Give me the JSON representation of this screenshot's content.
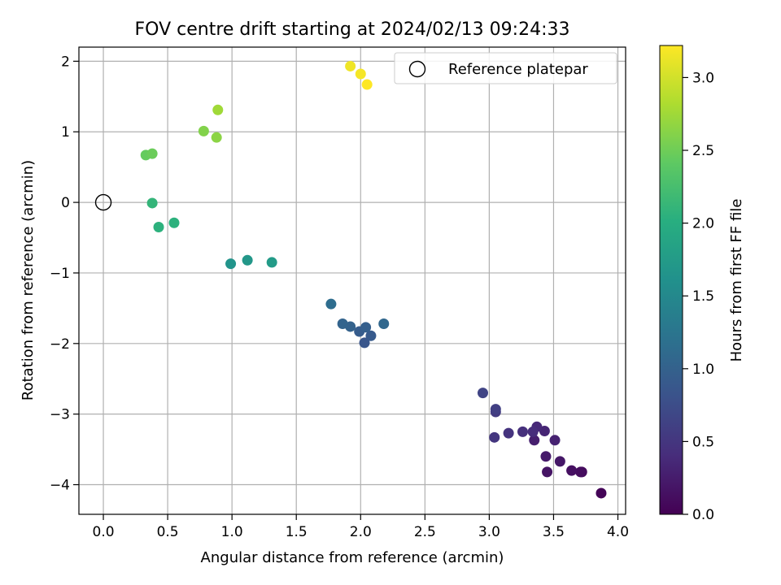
{
  "chart_data": {
    "type": "scatter",
    "title": "FOV centre drift starting at 2024/02/13 09:24:33",
    "xlabel": "Angular distance from reference (arcmin)",
    "ylabel": "Rotation from reference (arcmin)",
    "xlim": [
      -0.19,
      4.06
    ],
    "ylim": [
      -4.42,
      2.2
    ],
    "xticks": [
      0.0,
      0.5,
      1.0,
      1.5,
      2.0,
      2.5,
      3.0,
      3.5,
      4.0
    ],
    "xtick_labels": [
      "0.0",
      "0.5",
      "1.0",
      "1.5",
      "2.0",
      "2.5",
      "3.0",
      "3.5",
      "4.0"
    ],
    "yticks": [
      2,
      1,
      0,
      -1,
      -2,
      -3,
      -4
    ],
    "ytick_labels": [
      "2",
      "1",
      "0",
      "−1",
      "−2",
      "−3",
      "−4"
    ],
    "grid": true,
    "legend": {
      "position": "top-right",
      "entries": [
        "Reference platepar"
      ]
    },
    "reference_point": {
      "x": 0.0,
      "y": 0.0
    },
    "colorbar": {
      "label": "Hours from first FF file",
      "range": [
        0.0,
        3.22
      ],
      "ticks": [
        0.0,
        0.5,
        1.0,
        1.5,
        2.0,
        2.5,
        3.0
      ],
      "tick_labels": [
        "0.0",
        "0.5",
        "1.0",
        "1.5",
        "2.0",
        "2.5",
        "3.0"
      ],
      "colormap": "viridis"
    },
    "points": [
      {
        "x": 3.87,
        "y": -4.12,
        "hours": 0.03
      },
      {
        "x": 3.72,
        "y": -3.82,
        "hours": 0.07
      },
      {
        "x": 3.71,
        "y": -3.82,
        "hours": 0.1
      },
      {
        "x": 3.64,
        "y": -3.8,
        "hours": 0.13
      },
      {
        "x": 3.45,
        "y": -3.82,
        "hours": 0.17
      },
      {
        "x": 3.55,
        "y": -3.67,
        "hours": 0.2
      },
      {
        "x": 3.44,
        "y": -3.6,
        "hours": 0.23
      },
      {
        "x": 3.35,
        "y": -3.37,
        "hours": 0.27
      },
      {
        "x": 3.51,
        "y": -3.37,
        "hours": 0.3
      },
      {
        "x": 3.43,
        "y": -3.24,
        "hours": 0.33
      },
      {
        "x": 3.37,
        "y": -3.18,
        "hours": 0.37
      },
      {
        "x": 3.34,
        "y": -3.25,
        "hours": 0.4
      },
      {
        "x": 3.26,
        "y": -3.25,
        "hours": 0.43
      },
      {
        "x": 3.15,
        "y": -3.27,
        "hours": 0.47
      },
      {
        "x": 3.04,
        "y": -3.33,
        "hours": 0.5
      },
      {
        "x": 3.05,
        "y": -2.97,
        "hours": 0.55
      },
      {
        "x": 3.05,
        "y": -2.93,
        "hours": 0.6
      },
      {
        "x": 2.95,
        "y": -2.7,
        "hours": 0.65
      },
      {
        "x": 2.03,
        "y": -1.99,
        "hours": 0.85
      },
      {
        "x": 2.08,
        "y": -1.89,
        "hours": 0.9
      },
      {
        "x": 1.99,
        "y": -1.83,
        "hours": 0.93
      },
      {
        "x": 2.04,
        "y": -1.77,
        "hours": 0.97
      },
      {
        "x": 1.92,
        "y": -1.76,
        "hours": 1.0
      },
      {
        "x": 1.86,
        "y": -1.72,
        "hours": 1.03
      },
      {
        "x": 2.18,
        "y": -1.72,
        "hours": 1.07
      },
      {
        "x": 1.77,
        "y": -1.44,
        "hours": 1.15
      },
      {
        "x": 0.99,
        "y": -0.87,
        "hours": 1.65
      },
      {
        "x": 1.12,
        "y": -0.82,
        "hours": 1.7
      },
      {
        "x": 1.31,
        "y": -0.85,
        "hours": 1.75
      },
      {
        "x": 0.43,
        "y": -0.35,
        "hours": 2.05
      },
      {
        "x": 0.55,
        "y": -0.29,
        "hours": 2.05
      },
      {
        "x": 0.38,
        "y": -0.01,
        "hours": 2.1
      },
      {
        "x": 0.33,
        "y": 0.67,
        "hours": 2.45
      },
      {
        "x": 0.38,
        "y": 0.69,
        "hours": 2.48
      },
      {
        "x": 0.78,
        "y": 1.01,
        "hours": 2.6
      },
      {
        "x": 0.88,
        "y": 0.92,
        "hours": 2.65
      },
      {
        "x": 0.89,
        "y": 1.31,
        "hours": 2.75
      },
      {
        "x": 1.92,
        "y": 1.93,
        "hours": 3.15
      },
      {
        "x": 2.0,
        "y": 1.82,
        "hours": 3.18
      },
      {
        "x": 2.05,
        "y": 1.67,
        "hours": 3.22
      }
    ]
  }
}
